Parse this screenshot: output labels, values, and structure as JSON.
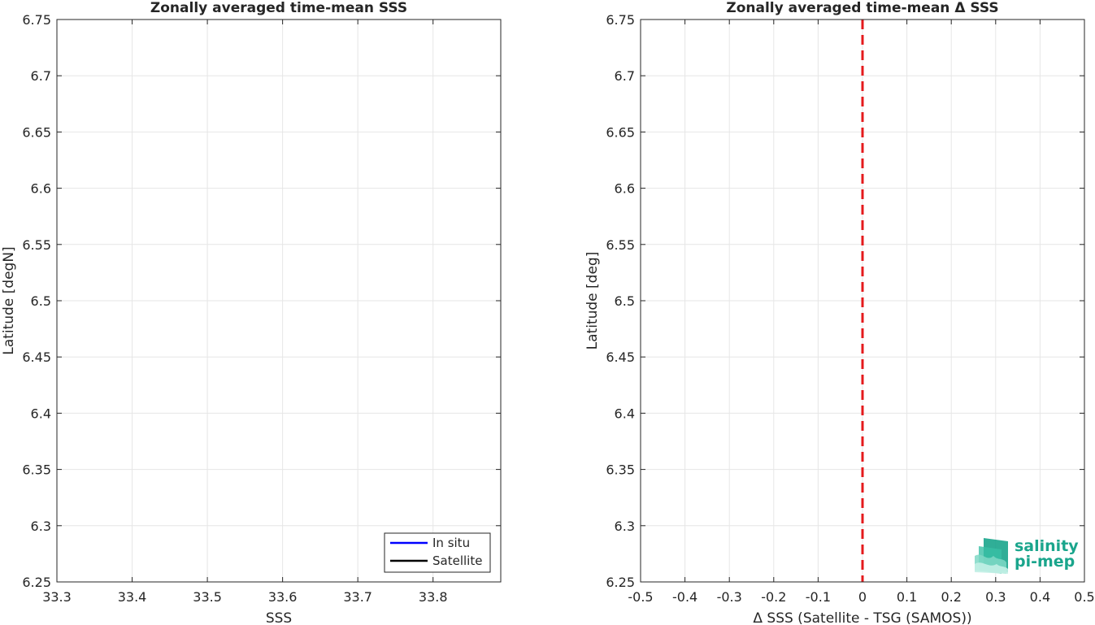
{
  "chart_data": [
    {
      "type": "line",
      "title": "Zonally averaged time-mean SSS",
      "xlabel": "SSS",
      "ylabel": "Latitude [degN]",
      "xlim": [
        33.3,
        33.89
      ],
      "ylim": [
        6.25,
        6.75
      ],
      "xticks": [
        "33.3",
        "33.4",
        "33.5",
        "33.6",
        "33.7",
        "33.8"
      ],
      "yticks": [
        "6.25",
        "6.3",
        "6.35",
        "6.4",
        "6.45",
        "6.5",
        "6.55",
        "6.6",
        "6.65",
        "6.7",
        "6.75"
      ],
      "grid": true,
      "legend_position": "bottom-right",
      "series": [
        {
          "name": "In situ",
          "color": "#0000ff",
          "values": []
        },
        {
          "name": "Satellite",
          "color": "#000000",
          "values": []
        }
      ]
    },
    {
      "type": "line",
      "title": "Zonally averaged time-mean Δ SSS",
      "xlabel": "Δ SSS (Satellite - TSG (SAMOS))",
      "ylabel": "Latitude [deg]",
      "xlim": [
        -0.5,
        0.5
      ],
      "ylim": [
        6.25,
        6.75
      ],
      "xticks": [
        "-0.5",
        "-0.4",
        "-0.3",
        "-0.2",
        "-0.1",
        "0",
        "0.1",
        "0.2",
        "0.3",
        "0.4",
        "0.5"
      ],
      "yticks": [
        "6.25",
        "6.3",
        "6.35",
        "6.4",
        "6.45",
        "6.5",
        "6.55",
        "6.6",
        "6.65",
        "6.7",
        "6.75"
      ],
      "grid": true,
      "reference_line": {
        "x": 0,
        "color": "#e41a1c",
        "style": "dashed"
      },
      "series": []
    }
  ],
  "logo": {
    "line1": "salinity",
    "line2": "pi-mep",
    "color": "#1aa58c"
  }
}
